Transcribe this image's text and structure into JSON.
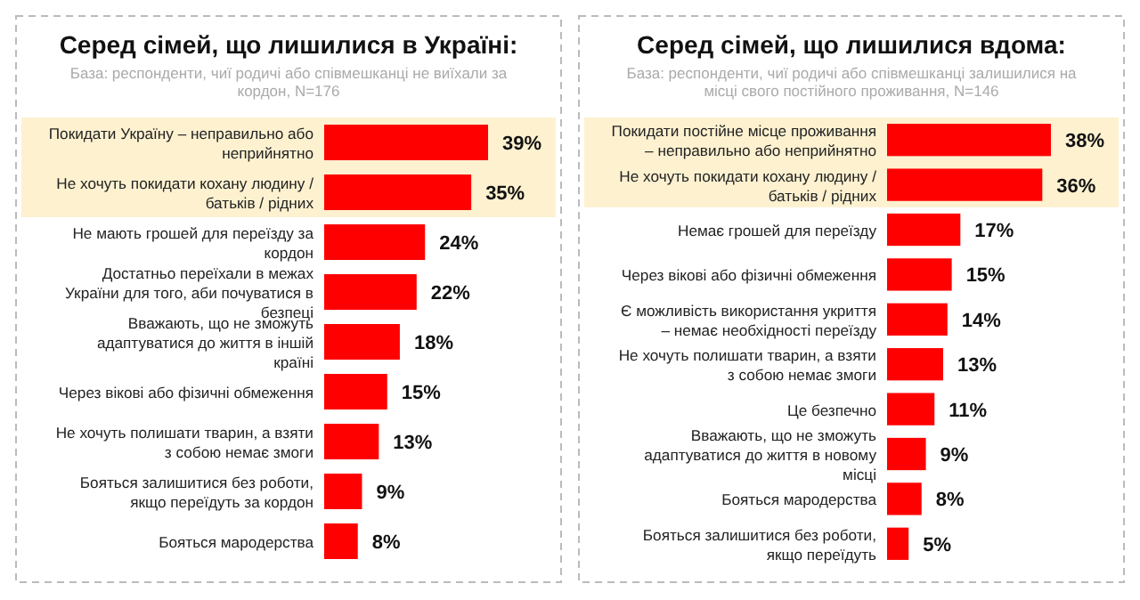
{
  "chart_data": [
    {
      "type": "bar",
      "orientation": "horizontal",
      "title": "Серед сімей, що лишилися в Україні:",
      "subtitle": "База: респонденти, чиї родичі або співмешканці не виїхали за кордон, N=176",
      "categories": [
        "Покидати Україну – неправильно або неприйнятно",
        "Не хочуть покидати кохану людину / батьків / рідних",
        "Не мають грошей для переїзду за кордон",
        "Достатньо переїхали в межах України для того, аби почуватися в безпеці",
        "Вважають, що не зможуть адаптуватися до життя в іншій країні",
        "Через вікові або фізичні обмеження",
        "Не хочуть полишати тварин, а взяти з собою немає змоги",
        "Бояться залишитися без роботи, якщо переїдуть за кордон",
        "Бояться мародерства"
      ],
      "values": [
        39,
        35,
        24,
        22,
        18,
        15,
        13,
        9,
        8
      ],
      "color": "#ff0000",
      "value_labels": [
        "39%",
        "35%",
        "24%",
        "22%",
        "18%",
        "15%",
        "13%",
        "9%",
        "8%"
      ],
      "bands": [
        {
          "axis": "y",
          "from": "Покидати Україну – неправильно або неприйнятно",
          "to": "Не хочуть покидати кохану людину / батьків / рідних",
          "color": "#fdf1d0"
        }
      ]
    },
    {
      "type": "bar",
      "orientation": "horizontal",
      "title": "Серед сімей, що лишилися вдома:",
      "subtitle": "База: респонденти, чиї родичі або співмешканці залишилися на місці свого постійного проживання, N=146",
      "categories": [
        "Покидати постійне місце проживання – неправильно або неприйнятно",
        "Не хочуть покидати кохану людину / батьків / рідних",
        "Немає грошей для переїзду",
        "Через вікові або фізичні обмеження",
        "Є можливість використання укриття – немає необхідності переїзду",
        "Не хочуть полишати тварин, а взяти з собою немає змоги",
        "Це безпечно",
        "Вважають, що не зможуть адаптуватися до життя в новому місці",
        "Бояться мародерства",
        "Бояться залишитися без роботи, якщо переїдуть"
      ],
      "values": [
        38,
        36,
        17,
        15,
        14,
        13,
        11,
        9,
        8,
        5
      ],
      "color": "#ff0000",
      "value_labels": [
        "38%",
        "36%",
        "17%",
        "15%",
        "14%",
        "13%",
        "11%",
        "9%",
        "8%",
        "5%"
      ],
      "bands": [
        {
          "axis": "y",
          "from": "Покидати постійне місце проживання – неправильно або неприйнятно",
          "to": "Не хочуть покидати кохану людину / батьків / рідних",
          "color": "#fdf1d0"
        }
      ]
    }
  ]
}
